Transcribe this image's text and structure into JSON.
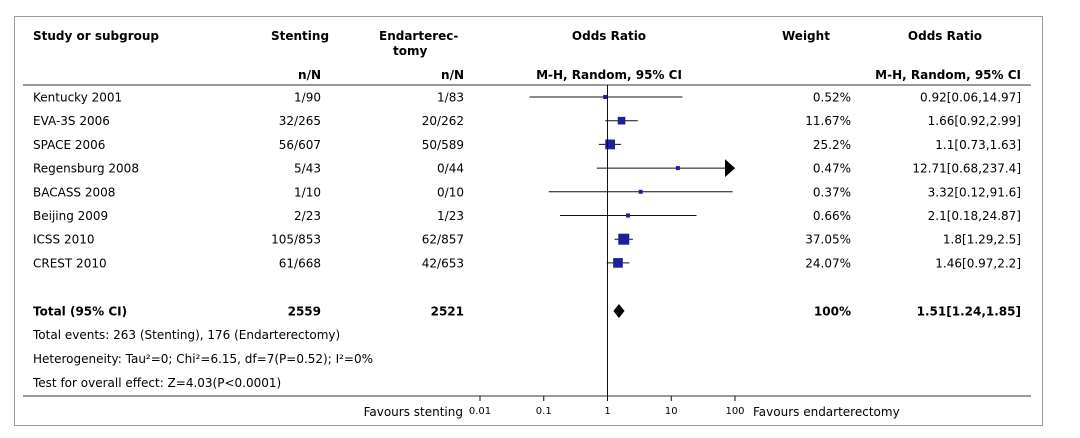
{
  "header": {
    "col_study": "Study or subgroup",
    "col_stenting": "Stenting",
    "col_endart_line1": "Endarterec-",
    "col_endart_line2": "tomy",
    "col_or_plot": "Odds Ratio",
    "col_weight": "Weight",
    "col_or_text": "Odds Ratio",
    "sub_stenting": "n/N",
    "sub_endart": "n/N",
    "sub_or_plot": "M-H, Random, 95% CI",
    "sub_or_text": "M-H, Random, 95% CI"
  },
  "chart_data": {
    "type": "forest",
    "x_scale": "log",
    "xlim": [
      0.01,
      100
    ],
    "ticks": [
      "0.01",
      "0.1",
      "1",
      "10",
      "100"
    ],
    "tick_values": [
      0.01,
      0.1,
      1,
      10,
      100
    ],
    "reference_line": 1,
    "marker_color": "#1f1f9e",
    "studies": [
      {
        "name": "Kentucky 2001",
        "stenting": "1/90",
        "endart": "1/83",
        "weight": "0.52%",
        "ci_text": "0.92[0.06,14.97]",
        "or": 0.92,
        "lo": 0.06,
        "hi": 14.97,
        "w": 0.52
      },
      {
        "name": "EVA-3S 2006",
        "stenting": "32/265",
        "endart": "20/262",
        "weight": "11.67%",
        "ci_text": "1.66[0.92,2.99]",
        "or": 1.66,
        "lo": 0.92,
        "hi": 2.99,
        "w": 11.67
      },
      {
        "name": "SPACE 2006",
        "stenting": "56/607",
        "endart": "50/589",
        "weight": "25.2%",
        "ci_text": "1.1[0.73,1.63]",
        "or": 1.1,
        "lo": 0.73,
        "hi": 1.63,
        "w": 25.2
      },
      {
        "name": "Regensburg 2008",
        "stenting": "5/43",
        "endart": "0/44",
        "weight": "0.47%",
        "ci_text": "12.71[0.68,237.4]",
        "or": 12.71,
        "lo": 0.68,
        "hi": 237.4,
        "w": 0.47
      },
      {
        "name": "BACASS 2008",
        "stenting": "1/10",
        "endart": "0/10",
        "weight": "0.37%",
        "ci_text": "3.32[0.12,91.6]",
        "or": 3.32,
        "lo": 0.12,
        "hi": 91.6,
        "w": 0.37
      },
      {
        "name": "Beijing 2009",
        "stenting": "2/23",
        "endart": "1/23",
        "weight": "0.66%",
        "ci_text": "2.1[0.18,24.87]",
        "or": 2.1,
        "lo": 0.18,
        "hi": 24.87,
        "w": 0.66
      },
      {
        "name": "ICSS 2010",
        "stenting": "105/853",
        "endart": "62/857",
        "weight": "37.05%",
        "ci_text": "1.8[1.29,2.5]",
        "or": 1.8,
        "lo": 1.29,
        "hi": 2.5,
        "w": 37.05
      },
      {
        "name": "CREST 2010",
        "stenting": "61/668",
        "endart": "42/653",
        "weight": "24.07%",
        "ci_text": "1.46[0.97,2.2]",
        "or": 1.46,
        "lo": 0.97,
        "hi": 2.2,
        "w": 24.07
      }
    ],
    "total": {
      "name": "Total (95% CI)",
      "stenting": "2559",
      "endart": "2521",
      "weight": "100%",
      "ci_text": "1.51[1.24,1.85]",
      "or": 1.51,
      "lo": 1.24,
      "hi": 1.85
    },
    "notes": [
      "Total events: 263 (Stenting), 176 (Endarterectomy)",
      "Heterogeneity: Tau²=0; Chi²=6.15, df=7(P=0.52); I²=0%",
      "Test for overall effect: Z=4.03(P<0.0001)"
    ],
    "favours_left": "Favours stenting",
    "favours_right": "Favours endarterectomy"
  }
}
